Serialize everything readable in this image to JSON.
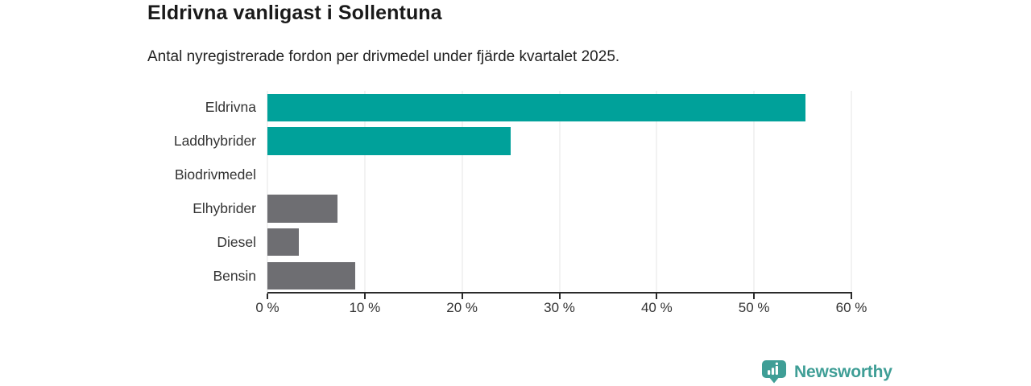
{
  "page": {
    "background": "#ffffff"
  },
  "chart_data": {
    "type": "bar",
    "orientation": "horizontal",
    "title": "Eldrivna vanligast i Sollentuna",
    "subtitle": "Antal nyregistrerade fordon per drivmedel under fjärde kvartalet 2025.",
    "categories": [
      "Eldrivna",
      "Laddhybrider",
      "Biodrivmedel",
      "Elhybrider",
      "Diesel",
      "Bensin"
    ],
    "values": [
      55.3,
      25.0,
      0,
      7.2,
      3.2,
      9.0
    ],
    "unit": "%",
    "bar_colors": [
      "#00a19a",
      "#00a19a",
      "#00a19a",
      "#6e6e72",
      "#6e6e72",
      "#6e6e72"
    ],
    "xlabel": "",
    "ylabel": "",
    "xlim": [
      0,
      60
    ],
    "x_ticks": [
      "0 %",
      "10 %",
      "20 %",
      "30 %",
      "40 %",
      "50 %",
      "60 %"
    ],
    "grid": "vertical-only",
    "legend": "none"
  },
  "branding": {
    "logo_text": "Newsworthy",
    "logo_color": "#3f9e96",
    "logo_icon": "bar-chart-pin-icon"
  },
  "colors": {
    "accent_teal": "#00a19a",
    "bar_gray": "#6e6e72",
    "axis": "#2b2b2b",
    "gridline": "#e4e4e4",
    "text": "#333333",
    "title_text": "#1a1a1a"
  }
}
